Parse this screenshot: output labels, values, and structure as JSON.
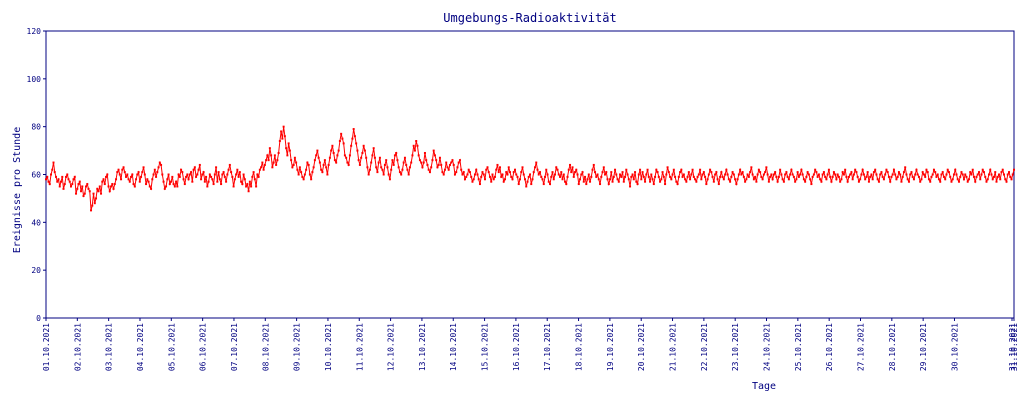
{
  "chart_data": {
    "type": "line",
    "title": "Umgebungs-Radioaktivität",
    "xlabel": "Tage",
    "ylabel": "Ereignisse pro Stunde",
    "x_tick_labels": [
      "01.10.2021",
      "02.10.2021",
      "03.10.2021",
      "04.10.2021",
      "05.10.2021",
      "06.10.2021",
      "07.10.2021",
      "08.10.2021",
      "09.10.2021",
      "10.10.2021",
      "11.10.2021",
      "12.10.2021",
      "13.10.2021",
      "14.10.2021",
      "15.10.2021",
      "16.10.2021",
      "17.10.2021",
      "18.10.2021",
      "19.10.2021",
      "20.10.2021",
      "21.10.2021",
      "22.10.2021",
      "23.10.2021",
      "24.10.2021",
      "25.10.2021",
      "26.10.2021",
      "27.10.2021",
      "28.10.2021",
      "29.10.2021",
      "30.10.2021",
      "31.10.2021",
      "31.10.2021"
    ],
    "y_ticks": [
      0,
      20,
      40,
      60,
      80,
      100,
      120
    ],
    "ylim": [
      0,
      120
    ],
    "xlim": [
      "01.10.2021 00:00",
      "31.10.2021 24:00"
    ],
    "grid": false,
    "legend": "none",
    "series_color": "#ff0000",
    "axis_color": "#000080",
    "series": [
      {
        "x_start": "01.10.2021 00:00",
        "x_step_hours": 1,
        "values": [
          58,
          59,
          57,
          56,
          60,
          62,
          65,
          61,
          59,
          57,
          58,
          55,
          57,
          59,
          54,
          56,
          59,
          60,
          58,
          57,
          55,
          56,
          58,
          59,
          52,
          54,
          56,
          57,
          53,
          55,
          51,
          52,
          55,
          56,
          54,
          53,
          45,
          47,
          52,
          48,
          50,
          54,
          53,
          55,
          52,
          57,
          58,
          56,
          59,
          60,
          55,
          53,
          55,
          56,
          54,
          56,
          58,
          61,
          62,
          60,
          58,
          62,
          63,
          61,
          59,
          60,
          58,
          57,
          59,
          60,
          56,
          55,
          58,
          60,
          61,
          57,
          59,
          61,
          63,
          60,
          56,
          58,
          57,
          55,
          54,
          58,
          60,
          62,
          59,
          61,
          63,
          65,
          64,
          60,
          57,
          54,
          55,
          58,
          60,
          56,
          57,
          59,
          56,
          55,
          57,
          55,
          60,
          59,
          62,
          61,
          58,
          56,
          59,
          60,
          58,
          60,
          61,
          57,
          62,
          63,
          59,
          60,
          62,
          64,
          58,
          60,
          61,
          57,
          59,
          55,
          57,
          60,
          59,
          58,
          56,
          60,
          63,
          57,
          61,
          58,
          56,
          60,
          61,
          59,
          57,
          60,
          62,
          64,
          61,
          59,
          55,
          58,
          60,
          62,
          59,
          61,
          57,
          56,
          60,
          58,
          55,
          56,
          53,
          57,
          55,
          59,
          61,
          58,
          55,
          60,
          59,
          62,
          63,
          65,
          62,
          64,
          66,
          68,
          66,
          71,
          68,
          63,
          65,
          68,
          64,
          66,
          69,
          74,
          78,
          75,
          80,
          76,
          71,
          68,
          73,
          70,
          66,
          63,
          64,
          67,
          65,
          62,
          60,
          63,
          61,
          59,
          58,
          60,
          62,
          65,
          64,
          60,
          58,
          61,
          63,
          66,
          68,
          70,
          67,
          65,
          62,
          61,
          64,
          66,
          63,
          60,
          64,
          67,
          70,
          72,
          69,
          66,
          65,
          68,
          70,
          74,
          77,
          75,
          73,
          68,
          67,
          65,
          64,
          68,
          72,
          75,
          79,
          76,
          73,
          70,
          66,
          64,
          67,
          69,
          72,
          70,
          67,
          63,
          60,
          62,
          65,
          68,
          71,
          67,
          63,
          61,
          65,
          67,
          63,
          62,
          60,
          64,
          66,
          63,
          60,
          58,
          62,
          66,
          64,
          68,
          69,
          66,
          63,
          61,
          60,
          62,
          65,
          67,
          64,
          62,
          60,
          63,
          65,
          68,
          72,
          70,
          74,
          72,
          68,
          66,
          65,
          63,
          65,
          69,
          66,
          64,
          62,
          61,
          63,
          66,
          70,
          68,
          66,
          63,
          64,
          67,
          64,
          61,
          60,
          62,
          65,
          63,
          62,
          64,
          65,
          66,
          64,
          60,
          61,
          63,
          65,
          66,
          62,
          60,
          61,
          58,
          59,
          60,
          62,
          61,
          59,
          57,
          58,
          60,
          62,
          60,
          58,
          56,
          59,
          61,
          60,
          58,
          62,
          63,
          61,
          59,
          57,
          60,
          58,
          59,
          62,
          64,
          61,
          63,
          59,
          60,
          57,
          58,
          61,
          60,
          63,
          61,
          59,
          58,
          61,
          62,
          60,
          59,
          56,
          58,
          61,
          63,
          60,
          58,
          55,
          57,
          59,
          60,
          56,
          58,
          61,
          63,
          65,
          62,
          60,
          61,
          59,
          58,
          56,
          59,
          62,
          60,
          57,
          56,
          59,
          61,
          58,
          60,
          63,
          62,
          60,
          59,
          61,
          58,
          60,
          57,
          56,
          59,
          62,
          64,
          61,
          63,
          59,
          61,
          62,
          60,
          56,
          58,
          60,
          61,
          57,
          59,
          56,
          58,
          60,
          57,
          59,
          62,
          64,
          61,
          59,
          60,
          58,
          56,
          59,
          61,
          63,
          60,
          61,
          58,
          56,
          58,
          61,
          57,
          59,
          62,
          60,
          58,
          57,
          60,
          59,
          61,
          57,
          59,
          62,
          60,
          58,
          55,
          59,
          60,
          58,
          61,
          57,
          56,
          60,
          62,
          58,
          61,
          59,
          57,
          60,
          62,
          59,
          57,
          60,
          58,
          56,
          59,
          62,
          61,
          59,
          57,
          58,
          61,
          59,
          56,
          60,
          63,
          61,
          59,
          58,
          60,
          62,
          59,
          57,
          56,
          59,
          61,
          62,
          59,
          60,
          58,
          57,
          59,
          61,
          58,
          60,
          62,
          59,
          58,
          57,
          59,
          60,
          62,
          58,
          60,
          61,
          59,
          56,
          58,
          60,
          62,
          61,
          59,
          57,
          60,
          61,
          58,
          56,
          59,
          61,
          59,
          58,
          60,
          62,
          60,
          58,
          57,
          59,
          61,
          60,
          58,
          56,
          58,
          60,
          62,
          60,
          61,
          59,
          57,
          58,
          60,
          59,
          61,
          63,
          60,
          58,
          59,
          57,
          60,
          62,
          61,
          59,
          58,
          60,
          61,
          63,
          60,
          57,
          59,
          60,
          58,
          60,
          61,
          59,
          57,
          59,
          62,
          60,
          58,
          57,
          60,
          61,
          59,
          58,
          60,
          62,
          60,
          59,
          57,
          58,
          61,
          59,
          60,
          62,
          60,
          58,
          57,
          59,
          61,
          60,
          58,
          56,
          59,
          60,
          62,
          61,
          59,
          60,
          58,
          57,
          60,
          61,
          59,
          58,
          60,
          62,
          59,
          57,
          59,
          61,
          60,
          58,
          60,
          59,
          57,
          58,
          61,
          60,
          62,
          59,
          57,
          59,
          60,
          61,
          58,
          60,
          62,
          61,
          59,
          57,
          58,
          60,
          62,
          60,
          58,
          59,
          61,
          57,
          59,
          60,
          58,
          61,
          62,
          60,
          58,
          57,
          60,
          61,
          59,
          58,
          60,
          62,
          61,
          59,
          57,
          59,
          60,
          62,
          60,
          58,
          59,
          61,
          60,
          57,
          59,
          61,
          63,
          60,
          58,
          57,
          60,
          61,
          59,
          58,
          60,
          62,
          60,
          59,
          57,
          58,
          61,
          60,
          59,
          62,
          61,
          58,
          57,
          59,
          60,
          62,
          61,
          59,
          60,
          58,
          57,
          60,
          61,
          59,
          58,
          60,
          62,
          61,
          59,
          57,
          58,
          60,
          62,
          60,
          58,
          57,
          59,
          61,
          60,
          58,
          60,
          59,
          57,
          58,
          61,
          60,
          62,
          59,
          57,
          59,
          60,
          61,
          58,
          60,
          62,
          61,
          59,
          57,
          58,
          60,
          62,
          60,
          58,
          59,
          61,
          57,
          59,
          60,
          58,
          61,
          62,
          60,
          58,
          57,
          60,
          61,
          59,
          58,
          60,
          62
        ]
      }
    ]
  }
}
